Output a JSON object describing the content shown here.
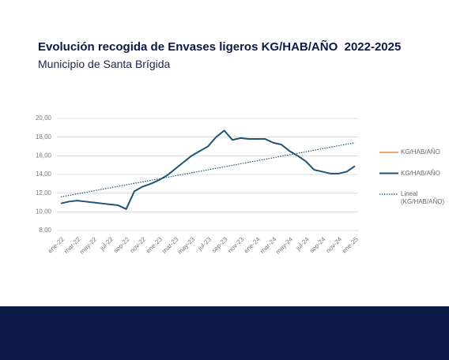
{
  "chart_data": {
    "type": "line",
    "title": "Evolución recogida de Envases ligeros KG/HAB/AÑO  2022-2025",
    "subtitle": "Municipio de Santa Brígida",
    "categories": [
      "ene-22",
      null,
      "mar-22",
      null,
      "may-22",
      null,
      "jul-22",
      null,
      "sep-22",
      null,
      "nov-22",
      null,
      "ene-23",
      null,
      "mar-23",
      null,
      "may-23",
      null,
      "jul-23",
      null,
      "sep-23",
      null,
      "nov-23",
      null,
      "ene-24",
      null,
      "mar-24",
      null,
      "may-24",
      null,
      "jul-24",
      null,
      "sep-24",
      null,
      "nov-24",
      null,
      "ene-25"
    ],
    "series": [
      {
        "name": "KG/HAB/AÑO",
        "color": "#f4a26b",
        "style": "solid",
        "values": [
          null,
          null,
          null,
          null,
          null,
          null,
          null,
          null,
          null,
          null,
          null,
          null,
          null,
          null,
          null,
          null,
          null,
          null,
          null,
          null,
          null,
          null,
          null,
          null,
          null,
          null,
          null,
          null,
          null,
          null,
          null,
          null,
          null,
          null,
          null,
          null,
          null
        ]
      },
      {
        "name": "KG/HAB/AÑO",
        "color": "#1f5573",
        "style": "solid",
        "values": [
          10.9,
          11.1,
          11.2,
          11.1,
          11.0,
          10.9,
          10.8,
          10.7,
          10.3,
          12.2,
          12.7,
          13.0,
          13.4,
          13.9,
          14.6,
          15.3,
          16.0,
          16.5,
          17.0,
          18.0,
          18.7,
          17.7,
          17.9,
          17.8,
          17.8,
          17.8,
          17.4,
          17.2,
          16.5,
          16.0,
          15.4,
          14.5,
          14.3,
          14.1,
          14.1,
          14.3,
          14.9
        ]
      },
      {
        "name": "Lineal (KG/HAB/AÑO)",
        "color": "#1f5573",
        "style": "dotted",
        "values": [
          11.6,
          11.76,
          11.92,
          12.08,
          12.24,
          12.41,
          12.57,
          12.73,
          12.89,
          13.05,
          13.21,
          13.37,
          13.53,
          13.69,
          13.86,
          14.02,
          14.18,
          14.34,
          14.5,
          14.66,
          14.82,
          14.98,
          15.14,
          15.31,
          15.47,
          15.63,
          15.79,
          15.95,
          16.11,
          16.27,
          16.43,
          16.59,
          16.76,
          16.92,
          17.08,
          17.24,
          17.4
        ]
      }
    ],
    "ylim": [
      8,
      20
    ],
    "yticks": [
      {
        "value": 8,
        "label": "8,00"
      },
      {
        "value": 10,
        "label": "10,00"
      },
      {
        "value": 12,
        "label": "12,00"
      },
      {
        "value": 14,
        "label": "14,00"
      },
      {
        "value": 16,
        "label": "16,00"
      },
      {
        "value": 18,
        "label": "18,00"
      },
      {
        "value": 20,
        "label": "20,00"
      }
    ],
    "grid": true,
    "legend": "right"
  }
}
